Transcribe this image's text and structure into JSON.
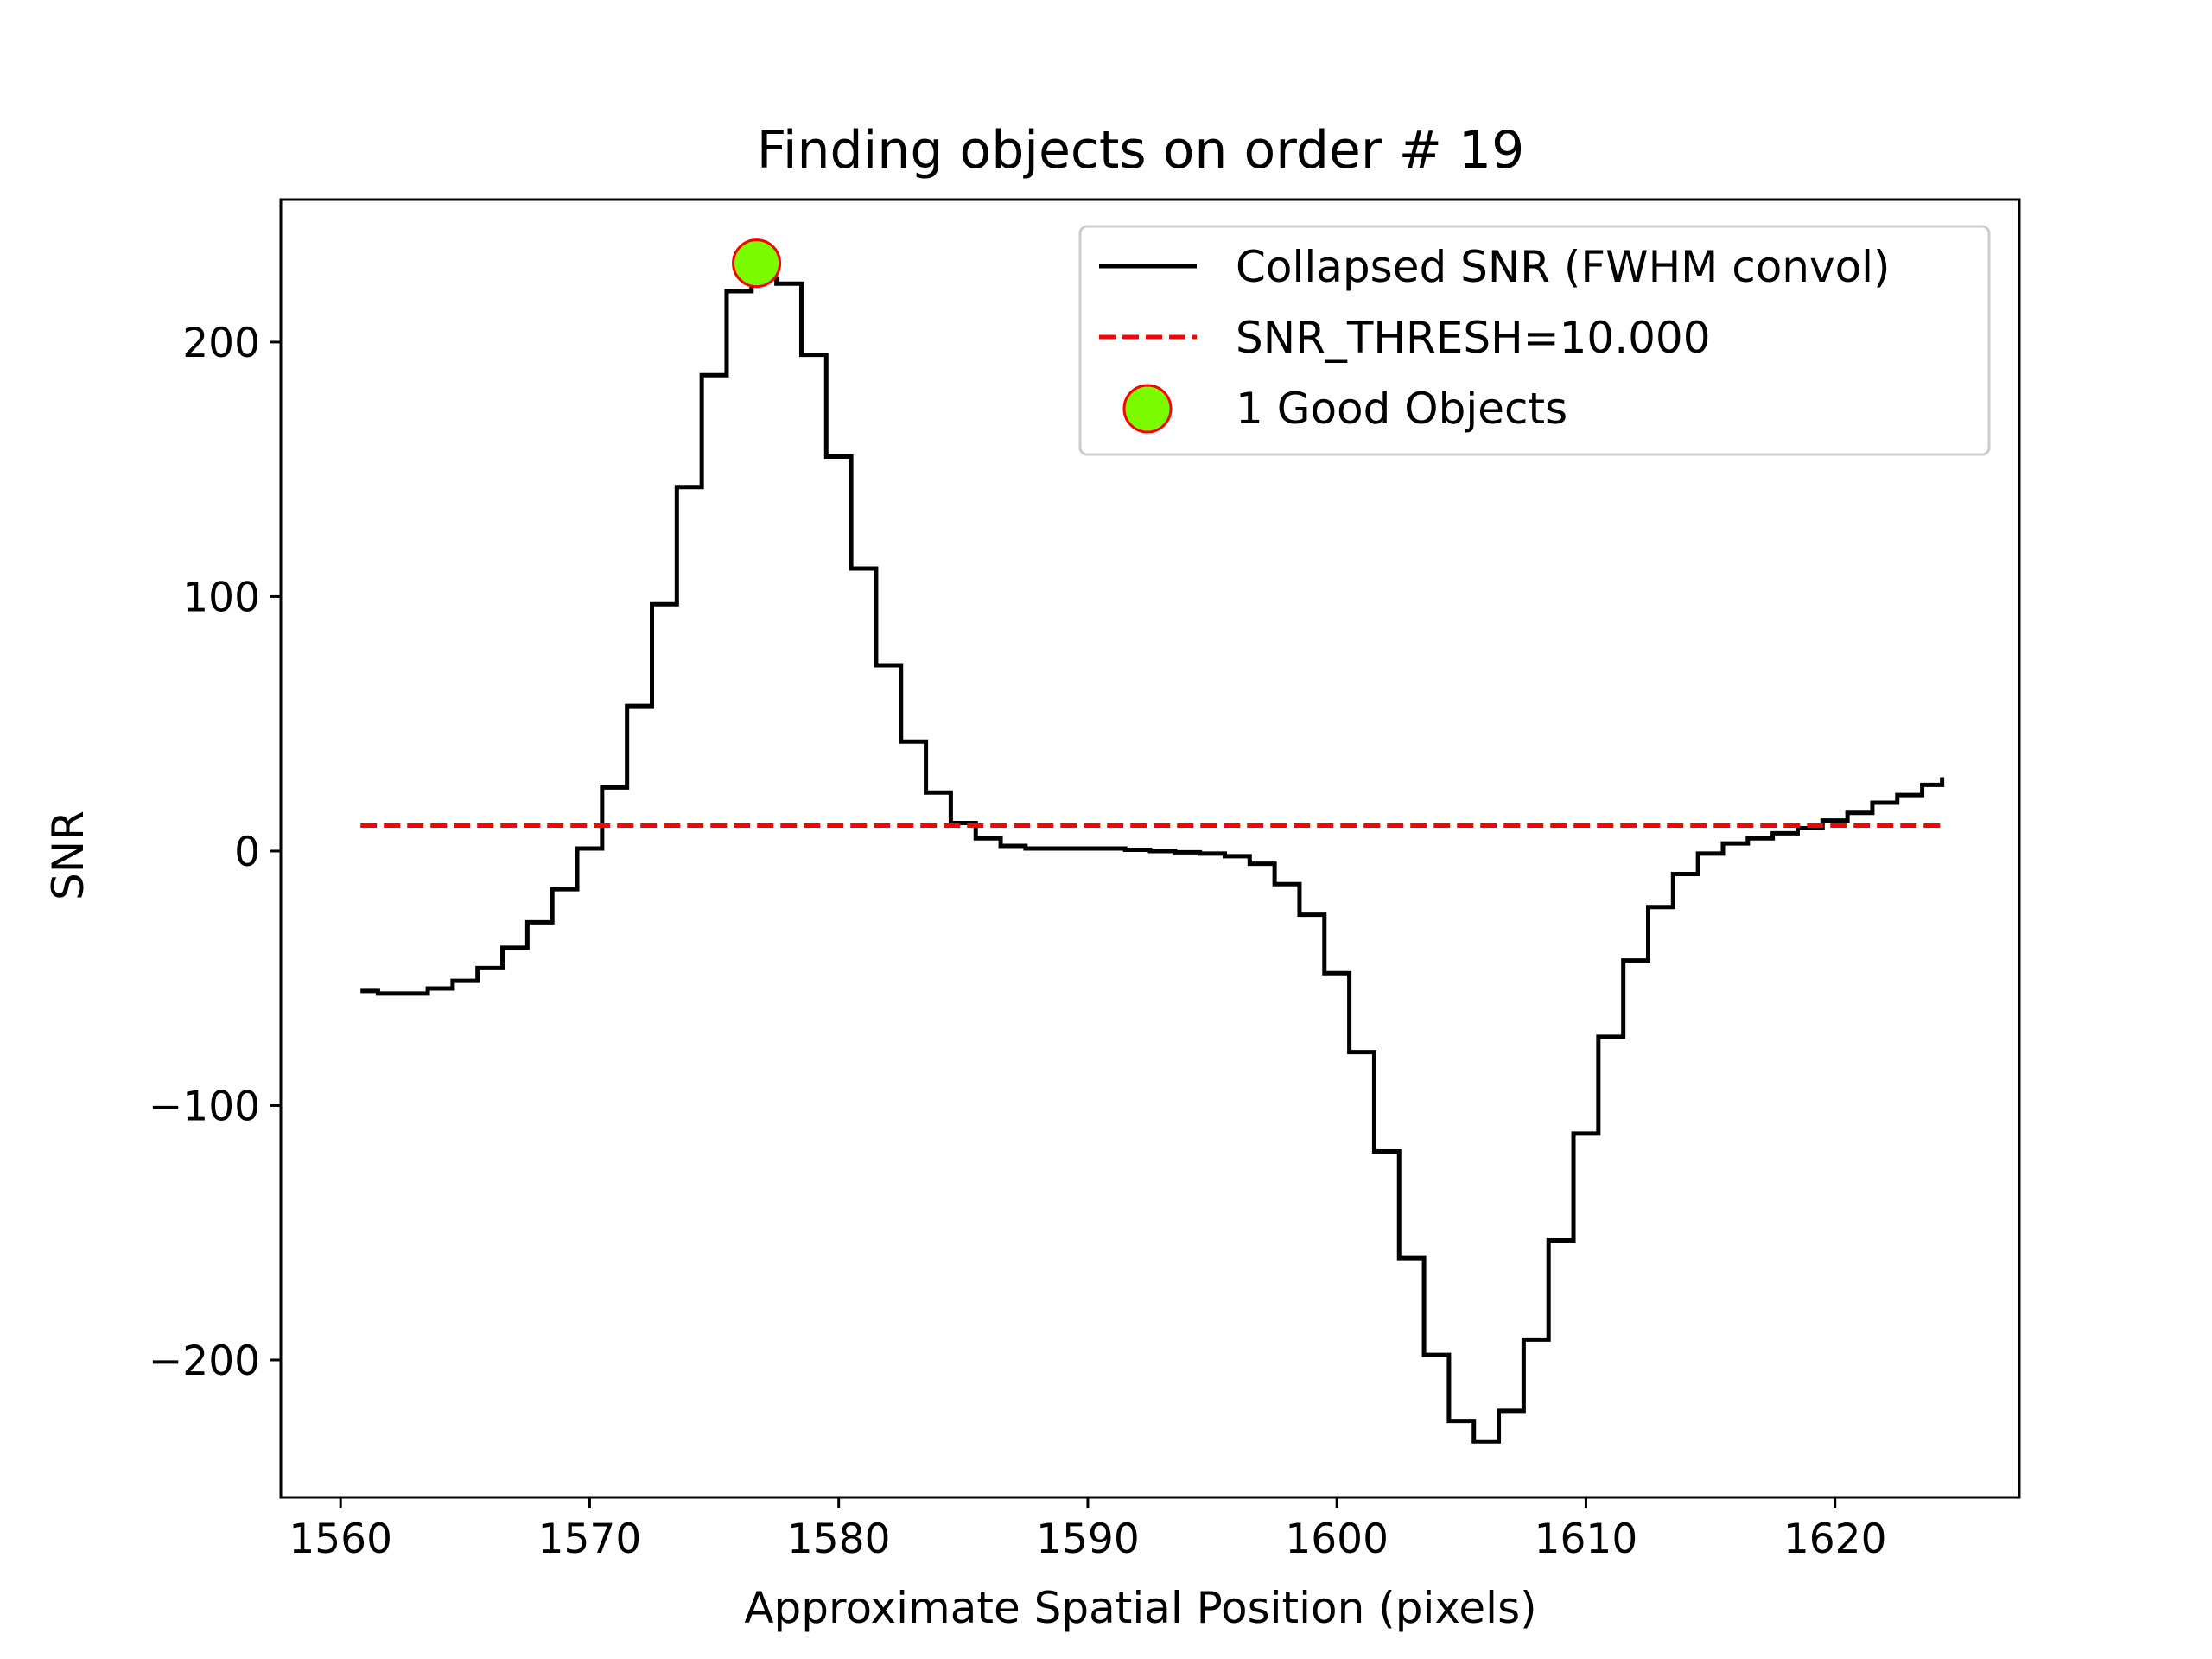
{
  "chart_data": {
    "type": "line",
    "title": "Finding objects on order # 19",
    "xlabel": "Approximate Spatial Position (pixels)",
    "ylabel": "SNR",
    "xlim": [
      1557.6,
      1627.4
    ],
    "ylim": [
      -254,
      256
    ],
    "xticks": [
      1560,
      1570,
      1580,
      1590,
      1600,
      1610,
      1620
    ],
    "yticks": [
      -200,
      -100,
      0,
      100,
      200
    ],
    "xtick_labels": [
      "1560",
      "1570",
      "1580",
      "1590",
      "1600",
      "1610",
      "1620"
    ],
    "ytick_labels": [
      "−200",
      "−100",
      "0",
      "100",
      "200"
    ],
    "grid": false,
    "legend_position": "top-right",
    "series": [
      {
        "name": "Collapsed SNR (FWHM convol)",
        "style": "step",
        "color": "#000000",
        "x": [
          1560.8,
          1561.5,
          1562.5,
          1563.5,
          1564.5,
          1565.5,
          1566.5,
          1567.5,
          1568.5,
          1569.5,
          1570.5,
          1571.5,
          1572.5,
          1573.5,
          1574.5,
          1575.5,
          1576.5,
          1577.5,
          1578.5,
          1579.5,
          1580.5,
          1581.5,
          1582.5,
          1583.5,
          1584.5,
          1585.5,
          1586.5,
          1587.5,
          1588.5,
          1589.5,
          1590.5,
          1591.5,
          1592.5,
          1593.5,
          1594.5,
          1595.5,
          1596.5,
          1597.5,
          1598.5,
          1599.5,
          1600.5,
          1601.5,
          1602.5,
          1603.5,
          1604.5,
          1605.5,
          1606.5,
          1607.5,
          1608.5,
          1609.5,
          1610.5,
          1611.5,
          1612.5,
          1613.5,
          1614.5,
          1615.5,
          1616.5,
          1617.5,
          1618.5,
          1619.5,
          1620.5,
          1621.5,
          1622.5,
          1623.5,
          1624.3
        ],
        "values": [
          -55,
          -56,
          -56,
          -54,
          -51,
          -46,
          -38,
          -28,
          -15,
          1,
          25,
          57,
          97,
          143,
          187,
          220,
          225,
          223,
          195,
          155,
          111,
          73,
          43,
          23,
          11,
          5,
          2,
          1,
          1,
          1,
          1,
          0.5,
          0,
          -0.5,
          -1,
          -2,
          -5,
          -13,
          -25,
          -48,
          -79,
          -118,
          -160,
          -198,
          -224,
          -232,
          -220,
          -192,
          -153,
          -111,
          -73,
          -43,
          -22,
          -9,
          -1,
          3,
          5,
          7,
          9,
          12,
          15,
          19,
          22,
          26,
          29
        ]
      },
      {
        "name": "SNR_THRESH=10.000",
        "style": "dashed",
        "color": "#ff0000",
        "x": [
          1560.8,
          1624.3
        ],
        "values": [
          10,
          10
        ]
      },
      {
        "name": "1 Good Objects",
        "style": "marker",
        "color": "#7cfc00",
        "edge_color": "#ff0000",
        "x": [
          1576.7
        ],
        "values": [
          231
        ]
      }
    ]
  }
}
